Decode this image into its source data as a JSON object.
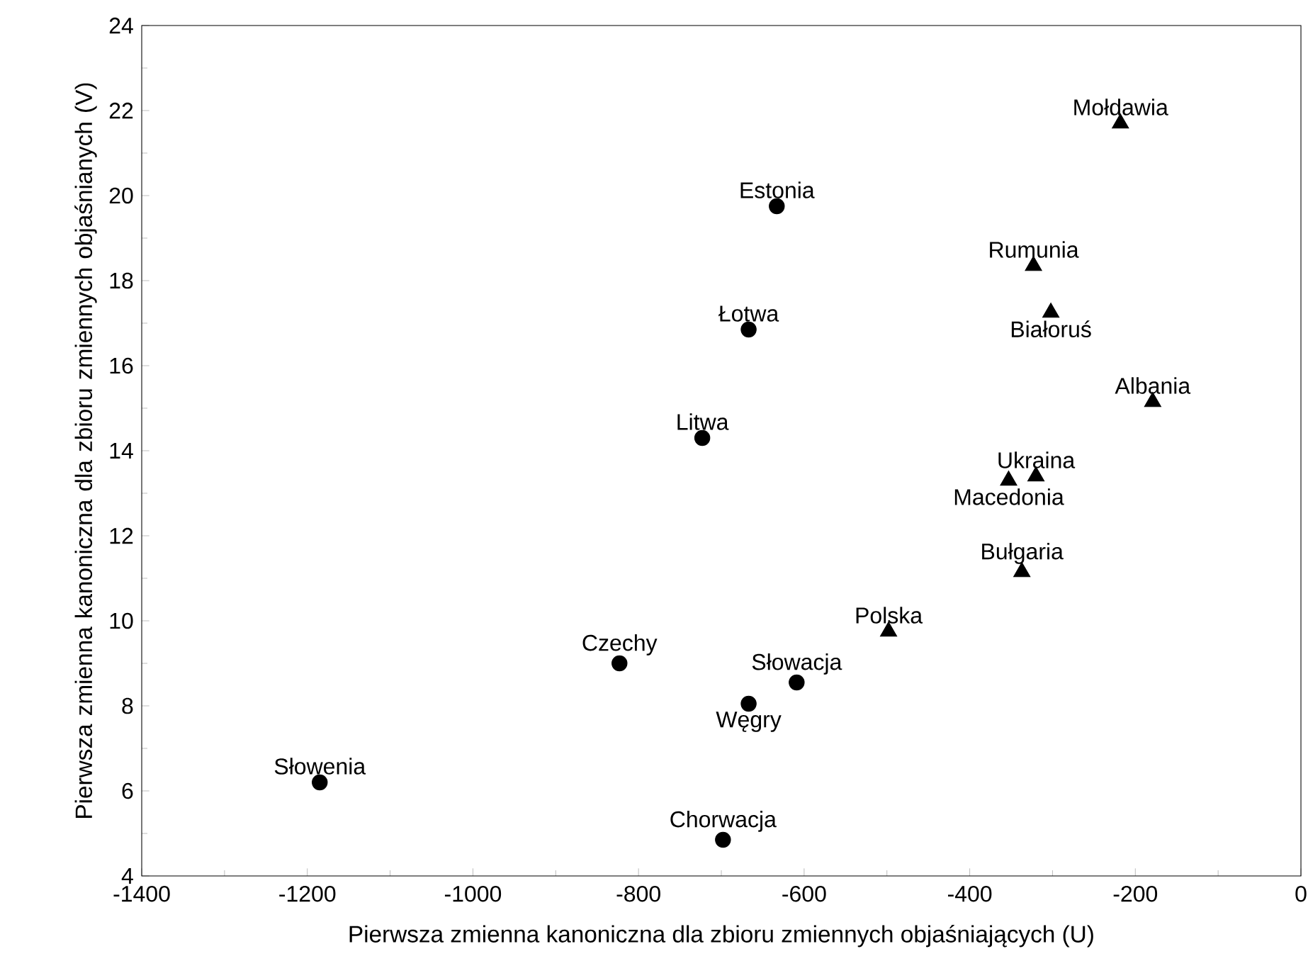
{
  "chart_data": {
    "type": "scatter",
    "xlabel": "Pierwsza zmienna kanoniczna dla zbioru zmiennych objaśniających (U)",
    "ylabel": "Pierwsza zmienna kanoniczna dla zbioru zmiennych objaśnianych (V)",
    "xlim": [
      -1400,
      0
    ],
    "xticks": [
      -1400,
      -1200,
      -1000,
      -800,
      -600,
      -400,
      -200,
      0
    ],
    "ylim": [
      4,
      24
    ],
    "yticks": [
      4,
      6,
      8,
      10,
      12,
      14,
      16,
      18,
      20,
      22,
      24
    ],
    "grid": false,
    "series": [
      {
        "color": "#000000",
        "marker": "circle",
        "x": [
          -633,
          -667,
          -723,
          -823,
          -609,
          -667,
          -1185,
          -698
        ],
        "values": [
          19.75,
          16.85,
          14.3,
          9.0,
          8.55,
          8.05,
          6.2,
          4.85
        ]
      },
      {
        "color": "#000000",
        "marker": "triangle",
        "x": [
          -218,
          -323,
          -302,
          -179,
          -320,
          -353,
          -337,
          -498
        ],
        "values": [
          21.7,
          18.35,
          17.25,
          15.15,
          13.4,
          13.3,
          11.15,
          9.75
        ]
      }
    ],
    "annotations": [
      {
        "text": "Estonia",
        "x": -633,
        "y": 19.75
      },
      {
        "text": "Łotwa",
        "x": -667,
        "y": 16.85
      },
      {
        "text": "Litwa",
        "x": -723,
        "y": 14.3
      },
      {
        "text": "Czechy",
        "x": -823,
        "y": 9.0
      },
      {
        "text": "Słowacja",
        "x": -609,
        "y": 8.55
      },
      {
        "text": "Węgry",
        "x": -667,
        "y": 8.05
      },
      {
        "text": "Słowenia",
        "x": -1185,
        "y": 6.2
      },
      {
        "text": "Chorwacja",
        "x": -698,
        "y": 4.85
      },
      {
        "text": "Mołdawia",
        "x": -218,
        "y": 21.7
      },
      {
        "text": "Rumunia",
        "x": -323,
        "y": 18.35
      },
      {
        "text": "Białoruś",
        "x": -302,
        "y": 17.25
      },
      {
        "text": "Albania",
        "x": -179,
        "y": 15.15
      },
      {
        "text": "Ukraina",
        "x": -320,
        "y": 13.4
      },
      {
        "text": "Macedonia",
        "x": -353,
        "y": 13.3
      },
      {
        "text": "Bułgaria",
        "x": -337,
        "y": 11.15
      },
      {
        "text": "Polska",
        "x": -498,
        "y": 9.75
      }
    ]
  }
}
